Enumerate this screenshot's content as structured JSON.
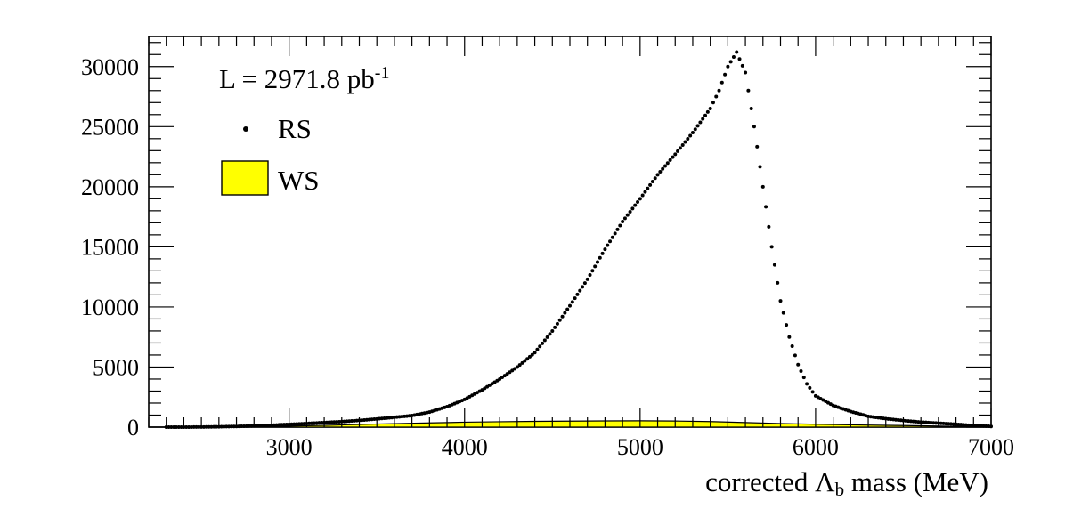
{
  "chart_data": {
    "type": "scatter",
    "xlabel": "corrected",
    "xlabel_symbol": "Λ",
    "xlabel_sub": "b",
    "xlabel_suffix": " mass (MeV)",
    "ylabel": "",
    "xlim": [
      2200,
      7000
    ],
    "ylim": [
      0,
      32500
    ],
    "x_ticks": [
      3000,
      4000,
      5000,
      6000,
      7000
    ],
    "y_ticks": [
      0,
      5000,
      10000,
      15000,
      20000,
      25000,
      30000
    ],
    "luminosity": {
      "prefix": "L = 2971.8 pb",
      "exponent": "-1"
    },
    "legend_position": "top-left",
    "series": [
      {
        "name": "RS",
        "style": "markers",
        "color": "#000000",
        "points": [
          [
            2300,
            0
          ],
          [
            2400,
            0
          ],
          [
            2500,
            10
          ],
          [
            2600,
            30
          ],
          [
            2700,
            60
          ],
          [
            2800,
            100
          ],
          [
            2900,
            160
          ],
          [
            3000,
            230
          ],
          [
            3100,
            300
          ],
          [
            3200,
            380
          ],
          [
            3300,
            460
          ],
          [
            3400,
            560
          ],
          [
            3500,
            680
          ],
          [
            3600,
            820
          ],
          [
            3700,
            960
          ],
          [
            3800,
            1250
          ],
          [
            3900,
            1700
          ],
          [
            4000,
            2300
          ],
          [
            4100,
            3100
          ],
          [
            4200,
            4000
          ],
          [
            4300,
            5000
          ],
          [
            4400,
            6200
          ],
          [
            4500,
            8000
          ],
          [
            4600,
            10100
          ],
          [
            4700,
            12300
          ],
          [
            4800,
            14800
          ],
          [
            4900,
            17100
          ],
          [
            5000,
            19000
          ],
          [
            5100,
            21000
          ],
          [
            5200,
            22700
          ],
          [
            5300,
            24500
          ],
          [
            5400,
            26500
          ],
          [
            5450,
            28000
          ],
          [
            5500,
            30000
          ],
          [
            5550,
            31200
          ],
          [
            5600,
            29500
          ],
          [
            5650,
            25000
          ],
          [
            5700,
            20000
          ],
          [
            5750,
            15000
          ],
          [
            5800,
            10500
          ],
          [
            5850,
            7500
          ],
          [
            5900,
            5200
          ],
          [
            5950,
            3600
          ],
          [
            6000,
            2600
          ],
          [
            6100,
            1800
          ],
          [
            6200,
            1300
          ],
          [
            6300,
            900
          ],
          [
            6400,
            700
          ],
          [
            6500,
            550
          ],
          [
            6600,
            420
          ],
          [
            6700,
            330
          ],
          [
            6800,
            240
          ],
          [
            6900,
            130
          ],
          [
            7000,
            60
          ]
        ]
      },
      {
        "name": "WS",
        "style": "filled-histogram",
        "color": "#ffff00",
        "edge_color": "#000000",
        "points": [
          [
            2200,
            0
          ],
          [
            2400,
            0
          ],
          [
            2600,
            20
          ],
          [
            2800,
            50
          ],
          [
            3000,
            90
          ],
          [
            3200,
            150
          ],
          [
            3400,
            220
          ],
          [
            3600,
            290
          ],
          [
            3800,
            350
          ],
          [
            4000,
            410
          ],
          [
            4200,
            450
          ],
          [
            4400,
            480
          ],
          [
            4600,
            500
          ],
          [
            4800,
            520
          ],
          [
            5000,
            530
          ],
          [
            5200,
            510
          ],
          [
            5400,
            460
          ],
          [
            5600,
            380
          ],
          [
            5800,
            300
          ],
          [
            6000,
            240
          ],
          [
            6200,
            190
          ],
          [
            6400,
            150
          ],
          [
            6600,
            110
          ],
          [
            6800,
            70
          ],
          [
            7000,
            40
          ]
        ]
      }
    ]
  }
}
